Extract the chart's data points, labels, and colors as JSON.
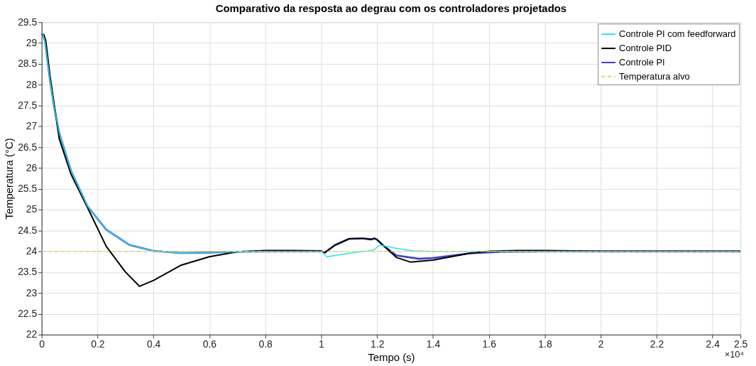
{
  "chart_data": {
    "type": "line",
    "title": "Comparativo da resposta ao degrau com os controladores projetados",
    "xlabel": "Tempo (s)",
    "ylabel": "Temperatura (°C)",
    "annotations": [
      "×10⁴"
    ],
    "xlim": [
      0,
      2.5
    ],
    "xticks": [
      0,
      0.2,
      0.4,
      0.6,
      0.8,
      1,
      1.2,
      1.4,
      1.6,
      1.8,
      2,
      2.2,
      2.4,
      2.5
    ],
    "ylim": [
      22,
      29.5
    ],
    "yticks": [
      22,
      22.5,
      23,
      23.5,
      24,
      24.5,
      25,
      25.5,
      26,
      26.5,
      27,
      27.5,
      28,
      28.5,
      29,
      29.5
    ],
    "grid": true,
    "legend": "top right",
    "series": [
      {
        "name": "Controle PI com feedforward",
        "color": "#22e6e6",
        "line_style": "solid",
        "x": [
          0,
          0.005,
          0.012,
          0.03,
          0.045,
          0.063,
          0.105,
          0.164,
          0.231,
          0.315,
          0.399,
          0.5,
          0.6,
          0.7,
          0.8,
          0.9,
          1.0,
          1.02,
          1.05,
          1.1,
          1.18,
          1.19,
          1.21,
          1.27,
          1.33,
          1.4,
          2.0,
          2.5
        ],
        "values": [
          29.2,
          29.2,
          29.05,
          28.1,
          27.46,
          26.84,
          25.93,
          25.08,
          24.52,
          24.15,
          24.01,
          23.96,
          23.97,
          23.99,
          24.0,
          24.0,
          24.0,
          23.87,
          23.9,
          23.95,
          24.02,
          24.04,
          24.15,
          24.07,
          24.01,
          24.0,
          24.0,
          24.0
        ]
      },
      {
        "name": "Controle PID",
        "color": "#000000",
        "line_style": "solid",
        "x": [
          0,
          0.008,
          0.015,
          0.03,
          0.063,
          0.105,
          0.164,
          0.231,
          0.3,
          0.35,
          0.4,
          0.5,
          0.6,
          0.7,
          0.8,
          0.9,
          1.0,
          1.013,
          1.05,
          1.1,
          1.15,
          1.18,
          1.19,
          1.2,
          1.22,
          1.27,
          1.32,
          1.4,
          1.53,
          1.6,
          1.7,
          1.8,
          2.0,
          2.5
        ],
        "values": [
          29.2,
          29.2,
          29.05,
          28.2,
          26.7,
          25.85,
          25.05,
          24.12,
          23.5,
          23.16,
          23.3,
          23.67,
          23.87,
          23.99,
          24.02,
          24.02,
          24.01,
          23.97,
          24.15,
          24.3,
          24.31,
          24.28,
          24.31,
          24.28,
          24.15,
          23.85,
          23.74,
          23.79,
          23.95,
          24.0,
          24.02,
          24.02,
          24.0,
          24.0
        ]
      },
      {
        "name": "Controle PI",
        "color": "#3f3fd0",
        "line_style": "solid",
        "x": [
          0,
          0.005,
          0.012,
          0.03,
          0.045,
          0.063,
          0.105,
          0.164,
          0.231,
          0.315,
          0.399,
          0.5,
          0.6,
          0.7,
          0.8,
          0.9,
          1.0,
          1.013,
          1.05,
          1.1,
          1.15,
          1.18,
          1.19,
          1.2,
          1.22,
          1.27,
          1.35,
          1.4,
          1.53,
          1.65,
          1.8,
          2.5
        ],
        "values": [
          29.2,
          29.2,
          29.05,
          28.1,
          27.46,
          26.84,
          25.93,
          25.08,
          24.52,
          24.15,
          24.01,
          23.96,
          23.97,
          23.99,
          24.0,
          24.0,
          24.0,
          23.97,
          24.15,
          24.3,
          24.31,
          24.29,
          24.31,
          24.28,
          24.15,
          23.9,
          23.82,
          23.84,
          23.95,
          23.99,
          24.0,
          24.0
        ]
      },
      {
        "name": "Temperatura alvo",
        "color": "#e6cf6e",
        "line_style": "dashed",
        "x": [
          0,
          2.5
        ],
        "values": [
          24,
          24
        ]
      }
    ]
  }
}
